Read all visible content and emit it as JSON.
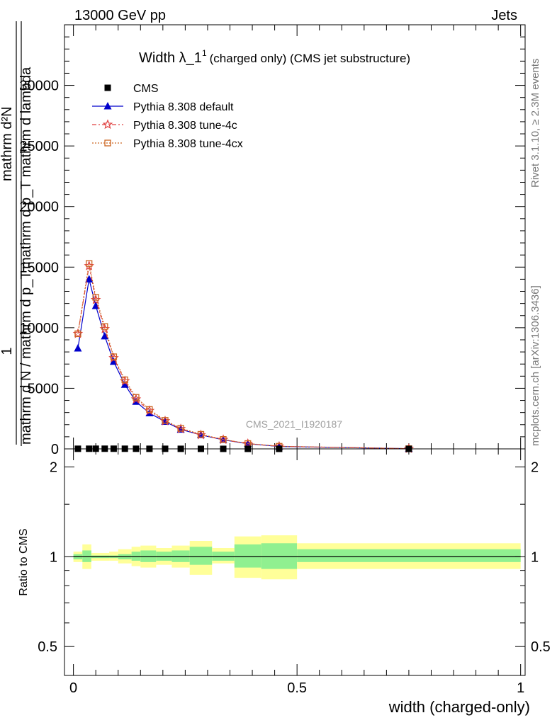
{
  "header": {
    "left": "13000 GeV pp",
    "right": "Jets"
  },
  "side": {
    "rivet": "Rivet 3.1.10, ≥ 2.3M events",
    "mcplots": "mcplots.cern.ch [arXiv:1306.3436]"
  },
  "chart_data": [
    {
      "type": "line",
      "title_main": "Width λ_1",
      "title_sup": "1",
      "title_rest": "(charged only) (CMS jet substructure)",
      "watermark": "CMS_2021_I1920187",
      "ylabel_lines": [
        "1",
        "mathrm d N / mathrm d p_T",
        "mathrm d²N",
        "mathrm d p_T mathrm d lambda"
      ],
      "xlim": [
        -0.02,
        1.01
      ],
      "ylim": [
        0,
        35000
      ],
      "yticks": [
        {
          "v": 0,
          "label": "0"
        },
        {
          "v": 5000,
          "label": "5000"
        },
        {
          "v": 10000,
          "label": "10000"
        },
        {
          "v": 15000,
          "label": "15000"
        },
        {
          "v": 20000,
          "label": "20000"
        },
        {
          "v": 25000,
          "label": "25000"
        },
        {
          "v": 30000,
          "label": "30000"
        }
      ],
      "x": [
        0.01,
        0.035,
        0.05,
        0.07,
        0.09,
        0.115,
        0.14,
        0.17,
        0.205,
        0.24,
        0.285,
        0.335,
        0.39,
        0.46,
        0.75
      ],
      "series": [
        {
          "name": "CMS",
          "marker": "square",
          "color": "#000000",
          "dash": "",
          "values": [
            10,
            12,
            14,
            14,
            14,
            12,
            10,
            8,
            8,
            6,
            5,
            3,
            2,
            1,
            0.2
          ]
        },
        {
          "name": "Pythia 8.308 default",
          "marker": "triangle",
          "color": "#0000cc",
          "dash": "",
          "values": [
            8300,
            14000,
            11800,
            9300,
            7200,
            5300,
            3900,
            2950,
            2250,
            1600,
            1150,
            750,
            420,
            200,
            15
          ]
        },
        {
          "name": "Pythia 8.308 tune-4c",
          "marker": "star",
          "color": "#e04040",
          "dash": "6,3,2,3",
          "values": [
            9500,
            15100,
            12300,
            9900,
            7500,
            5600,
            4100,
            3150,
            2300,
            1650,
            1150,
            760,
            430,
            210,
            16
          ]
        },
        {
          "name": "Pythia 8.308 tune-4cx",
          "marker": "opensquare",
          "color": "#cc6622",
          "dash": "2,2",
          "values": [
            9500,
            15300,
            12500,
            10100,
            7600,
            5700,
            4250,
            3250,
            2350,
            1700,
            1200,
            780,
            440,
            215,
            17
          ]
        }
      ],
      "legend": "top-left"
    },
    {
      "type": "area",
      "ylabel": "Ratio to CMS",
      "xlabel": "width (charged-only)",
      "xlim": [
        -0.02,
        1.01
      ],
      "ylim": [
        0.4,
        2.3
      ],
      "log_y": true,
      "xticks": [
        {
          "v": 0,
          "label": "0"
        },
        {
          "v": 0.5,
          "label": "0.5"
        },
        {
          "v": 1,
          "label": "1"
        }
      ],
      "yticks": [
        {
          "v": 0.5,
          "label": "0.5"
        },
        {
          "v": 1,
          "label": "1"
        },
        {
          "v": 2,
          "label": "2"
        }
      ],
      "bands": {
        "edges": [
          0,
          0.02,
          0.04,
          0.06,
          0.08,
          0.1,
          0.13,
          0.15,
          0.185,
          0.22,
          0.26,
          0.31,
          0.36,
          0.42,
          0.5,
          1.0
        ],
        "stat_lo": [
          0.98,
          0.96,
          0.99,
          0.99,
          0.99,
          0.98,
          0.97,
          0.96,
          0.97,
          0.96,
          0.94,
          0.97,
          0.92,
          0.91,
          0.96
        ],
        "stat_hi": [
          1.02,
          1.05,
          1.01,
          1.01,
          1.01,
          1.02,
          1.04,
          1.05,
          1.04,
          1.05,
          1.08,
          1.04,
          1.1,
          1.11,
          1.06
        ],
        "tot_lo": [
          0.96,
          0.91,
          0.97,
          0.97,
          0.97,
          0.95,
          0.93,
          0.92,
          0.94,
          0.92,
          0.87,
          0.95,
          0.85,
          0.84,
          0.91
        ],
        "tot_hi": [
          1.04,
          1.1,
          1.03,
          1.03,
          1.04,
          1.06,
          1.08,
          1.09,
          1.07,
          1.09,
          1.13,
          1.07,
          1.17,
          1.18,
          1.11
        ]
      },
      "colors": {
        "stat": "#90f090",
        "total": "#ffff99",
        "line": "#000000"
      }
    }
  ]
}
